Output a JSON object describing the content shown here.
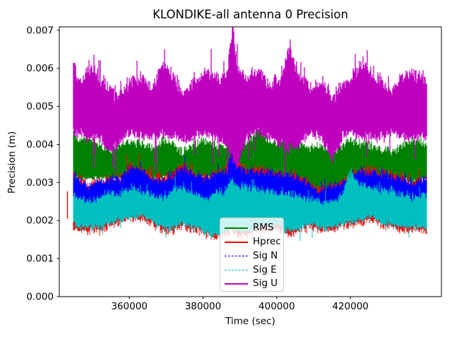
{
  "figure": {
    "title": "KLONDIKE-all antenna 0 Precision",
    "xlabel": "Time (sec)",
    "ylabel": "Precision (m)"
  },
  "legend": {
    "position": "lower center inside axes",
    "entries": [
      "RMS",
      "Hprec",
      "Sig N",
      "Sig E",
      "Sig U"
    ]
  },
  "chart_data": {
    "type": "line",
    "title": "KLONDIKE-all antenna 0 Precision",
    "xlabel": "Time (sec)",
    "ylabel": "Precision (m)",
    "grid": false,
    "xlim": [
      341000,
      444700
    ],
    "ylim": [
      0.0,
      0.00709
    ],
    "x_ticks": [
      360000,
      380000,
      400000,
      420000
    ],
    "x_tick_labels": [
      "360000",
      "380000",
      "400000",
      "420000"
    ],
    "y_ticks": [
      0.0,
      0.001,
      0.002,
      0.003,
      0.004,
      0.005,
      0.006,
      0.007
    ],
    "y_tick_labels": [
      "0.000",
      "0.001",
      "0.002",
      "0.003",
      "0.004",
      "0.005",
      "0.006",
      "0.007"
    ],
    "data_t_start": 344800,
    "data_t_end": 440700,
    "representation": "very dense noisy epoch-by-epoch series; each series given as top/bottom envelope values at sample_times",
    "sample_times": [
      344800,
      346000,
      348900,
      351700,
      354600,
      357500,
      360400,
      363200,
      366100,
      369000,
      371900,
      374700,
      377600,
      380500,
      383400,
      386200,
      388100,
      389100,
      392000,
      394900,
      397700,
      400600,
      403500,
      406400,
      409200,
      412100,
      415000,
      417900,
      420200,
      422700,
      425600,
      428400,
      431300,
      434200,
      437100,
      440700
    ],
    "series": [
      {
        "name": "RMS",
        "color": "#008000",
        "line_style": "solid",
        "legend_lw": 2.2,
        "envelope_top": [
          0.0044,
          0.0041,
          0.0042,
          0.004,
          0.0038,
          0.004,
          0.0041,
          0.004,
          0.0039,
          0.0041,
          0.004,
          0.0038,
          0.004,
          0.0041,
          0.004,
          0.0039,
          0.0044,
          0.004,
          0.004,
          0.0044,
          0.0041,
          0.004,
          0.0041,
          0.004,
          0.0039,
          0.004,
          0.0038,
          0.004,
          0.0041,
          0.004,
          0.004,
          0.0039,
          0.0038,
          0.004,
          0.0041,
          0.004
        ],
        "envelope_bottom": [
          0.0031,
          0.0031,
          0.0031,
          0.0031,
          0.0031,
          0.0031,
          0.0032,
          0.0032,
          0.0031,
          0.0031,
          0.0031,
          0.0032,
          0.0031,
          0.0031,
          0.0031,
          0.0031,
          0.0033,
          0.0032,
          0.0031,
          0.0031,
          0.0031,
          0.003,
          0.003,
          0.0029,
          0.0027,
          0.0026,
          0.0028,
          0.0029,
          0.0031,
          0.0031,
          0.0031,
          0.0031,
          0.0031,
          0.0031,
          0.003,
          0.0031
        ]
      },
      {
        "name": "Hprec",
        "color": "#ff0000",
        "line_style": "solid",
        "legend_lw": 2.8,
        "envelope_top": [
          0.0032,
          0.0031,
          0.0029,
          0.003,
          0.0031,
          0.0031,
          0.0034,
          0.0033,
          0.0031,
          0.0031,
          0.0032,
          0.0034,
          0.0032,
          0.0031,
          0.0032,
          0.0033,
          0.0039,
          0.0035,
          0.0033,
          0.0033,
          0.0033,
          0.0032,
          0.0032,
          0.0031,
          0.0029,
          0.0028,
          0.0029,
          0.003,
          0.0031,
          0.0033,
          0.0033,
          0.0032,
          0.0032,
          0.0031,
          0.003,
          0.0031
        ],
        "envelope_bottom": [
          0.0019,
          0.0018,
          0.0018,
          0.0018,
          0.0019,
          0.002,
          0.0021,
          0.0021,
          0.002,
          0.0018,
          0.0018,
          0.0019,
          0.0018,
          0.0017,
          0.0016,
          0.0017,
          0.0018,
          0.0017,
          0.0017,
          0.0018,
          0.0018,
          0.0018,
          0.0017,
          0.0018,
          0.0019,
          0.0018,
          0.0018,
          0.0019,
          0.0019,
          0.002,
          0.0021,
          0.0019,
          0.0019,
          0.0018,
          0.0018,
          0.0018
        ],
        "isolated_segment": {
          "t": 343200,
          "v_top": 0.00277,
          "v_bottom": 0.00205
        }
      },
      {
        "name": "Sig N",
        "color": "#0000ff",
        "line_style": "dashed",
        "legend_lw": 1.2,
        "envelope_top": [
          0.0032,
          0.0031,
          0.0029,
          0.003,
          0.0031,
          0.0031,
          0.0034,
          0.0033,
          0.0031,
          0.0031,
          0.0032,
          0.0034,
          0.0032,
          0.0031,
          0.0032,
          0.0033,
          0.0039,
          0.0035,
          0.0033,
          0.0033,
          0.0033,
          0.0032,
          0.0032,
          0.0031,
          0.0029,
          0.0028,
          0.0029,
          0.003,
          0.0031,
          0.0033,
          0.0033,
          0.0032,
          0.0032,
          0.0031,
          0.003,
          0.0031
        ],
        "envelope_bottom": [
          0.0023,
          0.0023,
          0.0023,
          0.0023,
          0.0023,
          0.0023,
          0.0023,
          0.0023,
          0.0023,
          0.0023,
          0.0023,
          0.0023,
          0.0023,
          0.0023,
          0.0023,
          0.0023,
          0.0023,
          0.0023,
          0.0023,
          0.0023,
          0.0023,
          0.0023,
          0.0023,
          0.0023,
          0.0023,
          0.0023,
          0.0023,
          0.0023,
          0.0023,
          0.0023,
          0.0023,
          0.0023,
          0.0023,
          0.0023,
          0.0023,
          0.0023
        ]
      },
      {
        "name": "Sig E",
        "color": "#00bfbf",
        "line_style": "dashed",
        "legend_lw": 1.2,
        "envelope_top": [
          0.0027,
          0.0026,
          0.0025,
          0.0026,
          0.0027,
          0.0027,
          0.0029,
          0.0028,
          0.0027,
          0.0026,
          0.0028,
          0.0029,
          0.0027,
          0.0026,
          0.0027,
          0.0028,
          0.0031,
          0.0029,
          0.0029,
          0.0028,
          0.0028,
          0.0027,
          0.0027,
          0.0026,
          0.0026,
          0.0025,
          0.0025,
          0.0027,
          0.0033,
          0.0029,
          0.0029,
          0.0028,
          0.0028,
          0.0027,
          0.0026,
          0.0027
        ],
        "envelope_bottom": [
          0.0019,
          0.0018,
          0.0018,
          0.0018,
          0.0019,
          0.002,
          0.0021,
          0.0021,
          0.002,
          0.0018,
          0.0018,
          0.0019,
          0.0018,
          0.0017,
          0.0016,
          0.0017,
          0.0018,
          0.0017,
          0.0017,
          0.0018,
          0.0018,
          0.0018,
          0.0017,
          0.0018,
          0.0019,
          0.0018,
          0.0018,
          0.0019,
          0.0019,
          0.002,
          0.0021,
          0.0019,
          0.0019,
          0.0018,
          0.0018,
          0.0018
        ]
      },
      {
        "name": "Sig U",
        "color": "#bf00bf",
        "line_style": "solid",
        "legend_lw": 2.0,
        "envelope_top": [
          0.0062,
          0.0057,
          0.006,
          0.0058,
          0.0055,
          0.0052,
          0.0057,
          0.0058,
          0.0055,
          0.0061,
          0.0058,
          0.0053,
          0.0057,
          0.0059,
          0.0058,
          0.0057,
          0.0071,
          0.0061,
          0.0057,
          0.006,
          0.0056,
          0.0057,
          0.0065,
          0.0057,
          0.0055,
          0.0057,
          0.0052,
          0.0056,
          0.0057,
          0.0061,
          0.0059,
          0.0056,
          0.0054,
          0.0058,
          0.0059,
          0.0057
        ],
        "envelope_bottom": [
          0.0043,
          0.0043,
          0.0042,
          0.0042,
          0.0038,
          0.0041,
          0.0043,
          0.0042,
          0.0042,
          0.0043,
          0.0042,
          0.0041,
          0.0042,
          0.0043,
          0.0042,
          0.004,
          0.0036,
          0.0034,
          0.0042,
          0.0043,
          0.0042,
          0.004,
          0.0039,
          0.004,
          0.0043,
          0.0042,
          0.0036,
          0.0042,
          0.0043,
          0.0042,
          0.0042,
          0.0042,
          0.0043,
          0.0042,
          0.0042,
          0.0042
        ]
      }
    ]
  }
}
